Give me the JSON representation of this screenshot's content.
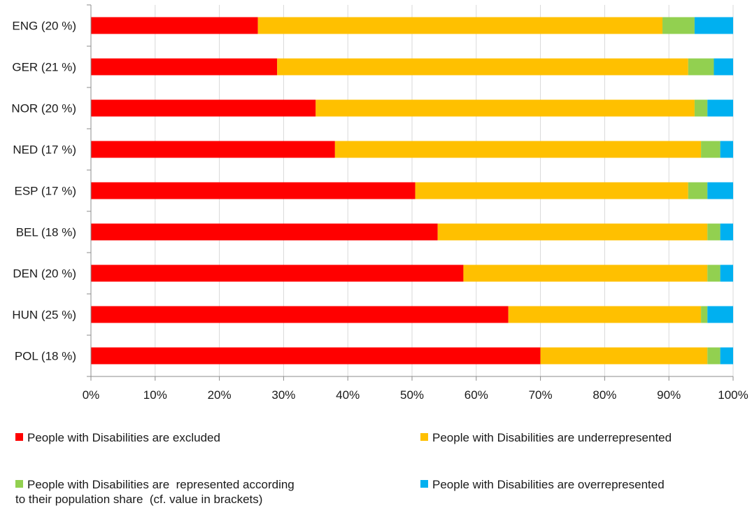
{
  "chart_data": {
    "type": "bar",
    "orientation": "horizontal",
    "stacked": "percent",
    "categories": [
      "ENG (20 %)",
      "GER (21 %)",
      "NOR (20 %)",
      "NED (17 %)",
      "ESP (17 %)",
      "BEL (18 %)",
      "DEN (20 %)",
      "HUN (25 %)",
      "POL (18 %)"
    ],
    "series": [
      {
        "name": "People with Disabilities are excluded",
        "color": "#ff0000",
        "values": [
          26,
          29,
          35,
          38,
          50.5,
          54,
          58,
          65,
          70
        ]
      },
      {
        "name": "People with Disabilities are underrepresented",
        "color": "#ffc000",
        "values": [
          63,
          64,
          59,
          57,
          42.5,
          42,
          38,
          30,
          26
        ]
      },
      {
        "name": "People with Disabilities are  represented according\nto their population share  (cf. value in brackets)",
        "color": "#92d050",
        "values": [
          5,
          4,
          2,
          3,
          3,
          2,
          2,
          1,
          2
        ]
      },
      {
        "name": "People with Disabilities are overrepresented",
        "color": "#00b0f0",
        "values": [
          6,
          3,
          4,
          2,
          4,
          2,
          2,
          4,
          2
        ]
      }
    ],
    "x_ticks": [
      "0%",
      "10%",
      "20%",
      "30%",
      "40%",
      "50%",
      "60%",
      "70%",
      "80%",
      "90%",
      "100%"
    ],
    "xlim": [
      0,
      100
    ],
    "grid": "vertical",
    "legend_position": "bottom"
  }
}
